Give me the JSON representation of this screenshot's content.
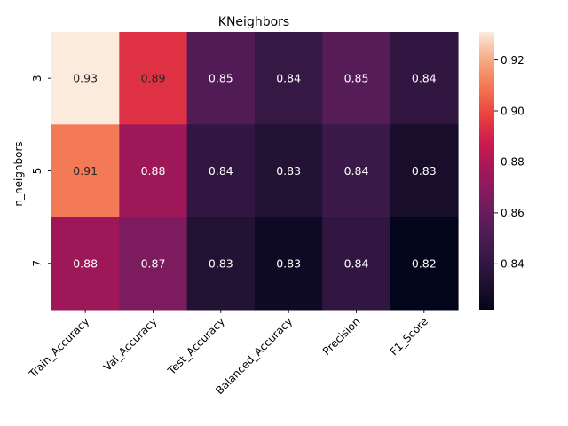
{
  "chart_data": {
    "type": "heatmap",
    "title": "KNeighbors",
    "xlabel": "",
    "ylabel": "n_neighbors",
    "x_categories": [
      "Train_Accuracy",
      "Val_Accuracy",
      "Test_Accuracy",
      "Balanced_Accuracy",
      "Precision",
      "F1_Score"
    ],
    "y_categories": [
      "3",
      "5",
      "7"
    ],
    "values": [
      [
        0.931,
        0.894,
        0.852,
        0.842,
        0.854,
        0.84
      ],
      [
        0.91,
        0.876,
        0.84,
        0.834,
        0.844,
        0.83
      ],
      [
        0.876,
        0.866,
        0.834,
        0.827,
        0.84,
        0.822
      ]
    ],
    "annotations": [
      [
        "0.93",
        "0.89",
        "0.85",
        "0.84",
        "0.85",
        "0.84"
      ],
      [
        "0.91",
        "0.88",
        "0.84",
        "0.83",
        "0.84",
        "0.83"
      ],
      [
        "0.88",
        "0.87",
        "0.83",
        "0.83",
        "0.84",
        "0.82"
      ]
    ],
    "colorbar": {
      "colormap": "rocket",
      "vmin": 0.822,
      "vmax": 0.931,
      "ticks": [
        "0.84",
        "0.86",
        "0.88",
        "0.90",
        "0.92"
      ],
      "tick_values": [
        0.84,
        0.86,
        0.88,
        0.9,
        0.92
      ]
    },
    "grid": false
  },
  "colors": {
    "text_light": "#ffffff",
    "text_dark": "#262626",
    "axis": "#000000"
  }
}
